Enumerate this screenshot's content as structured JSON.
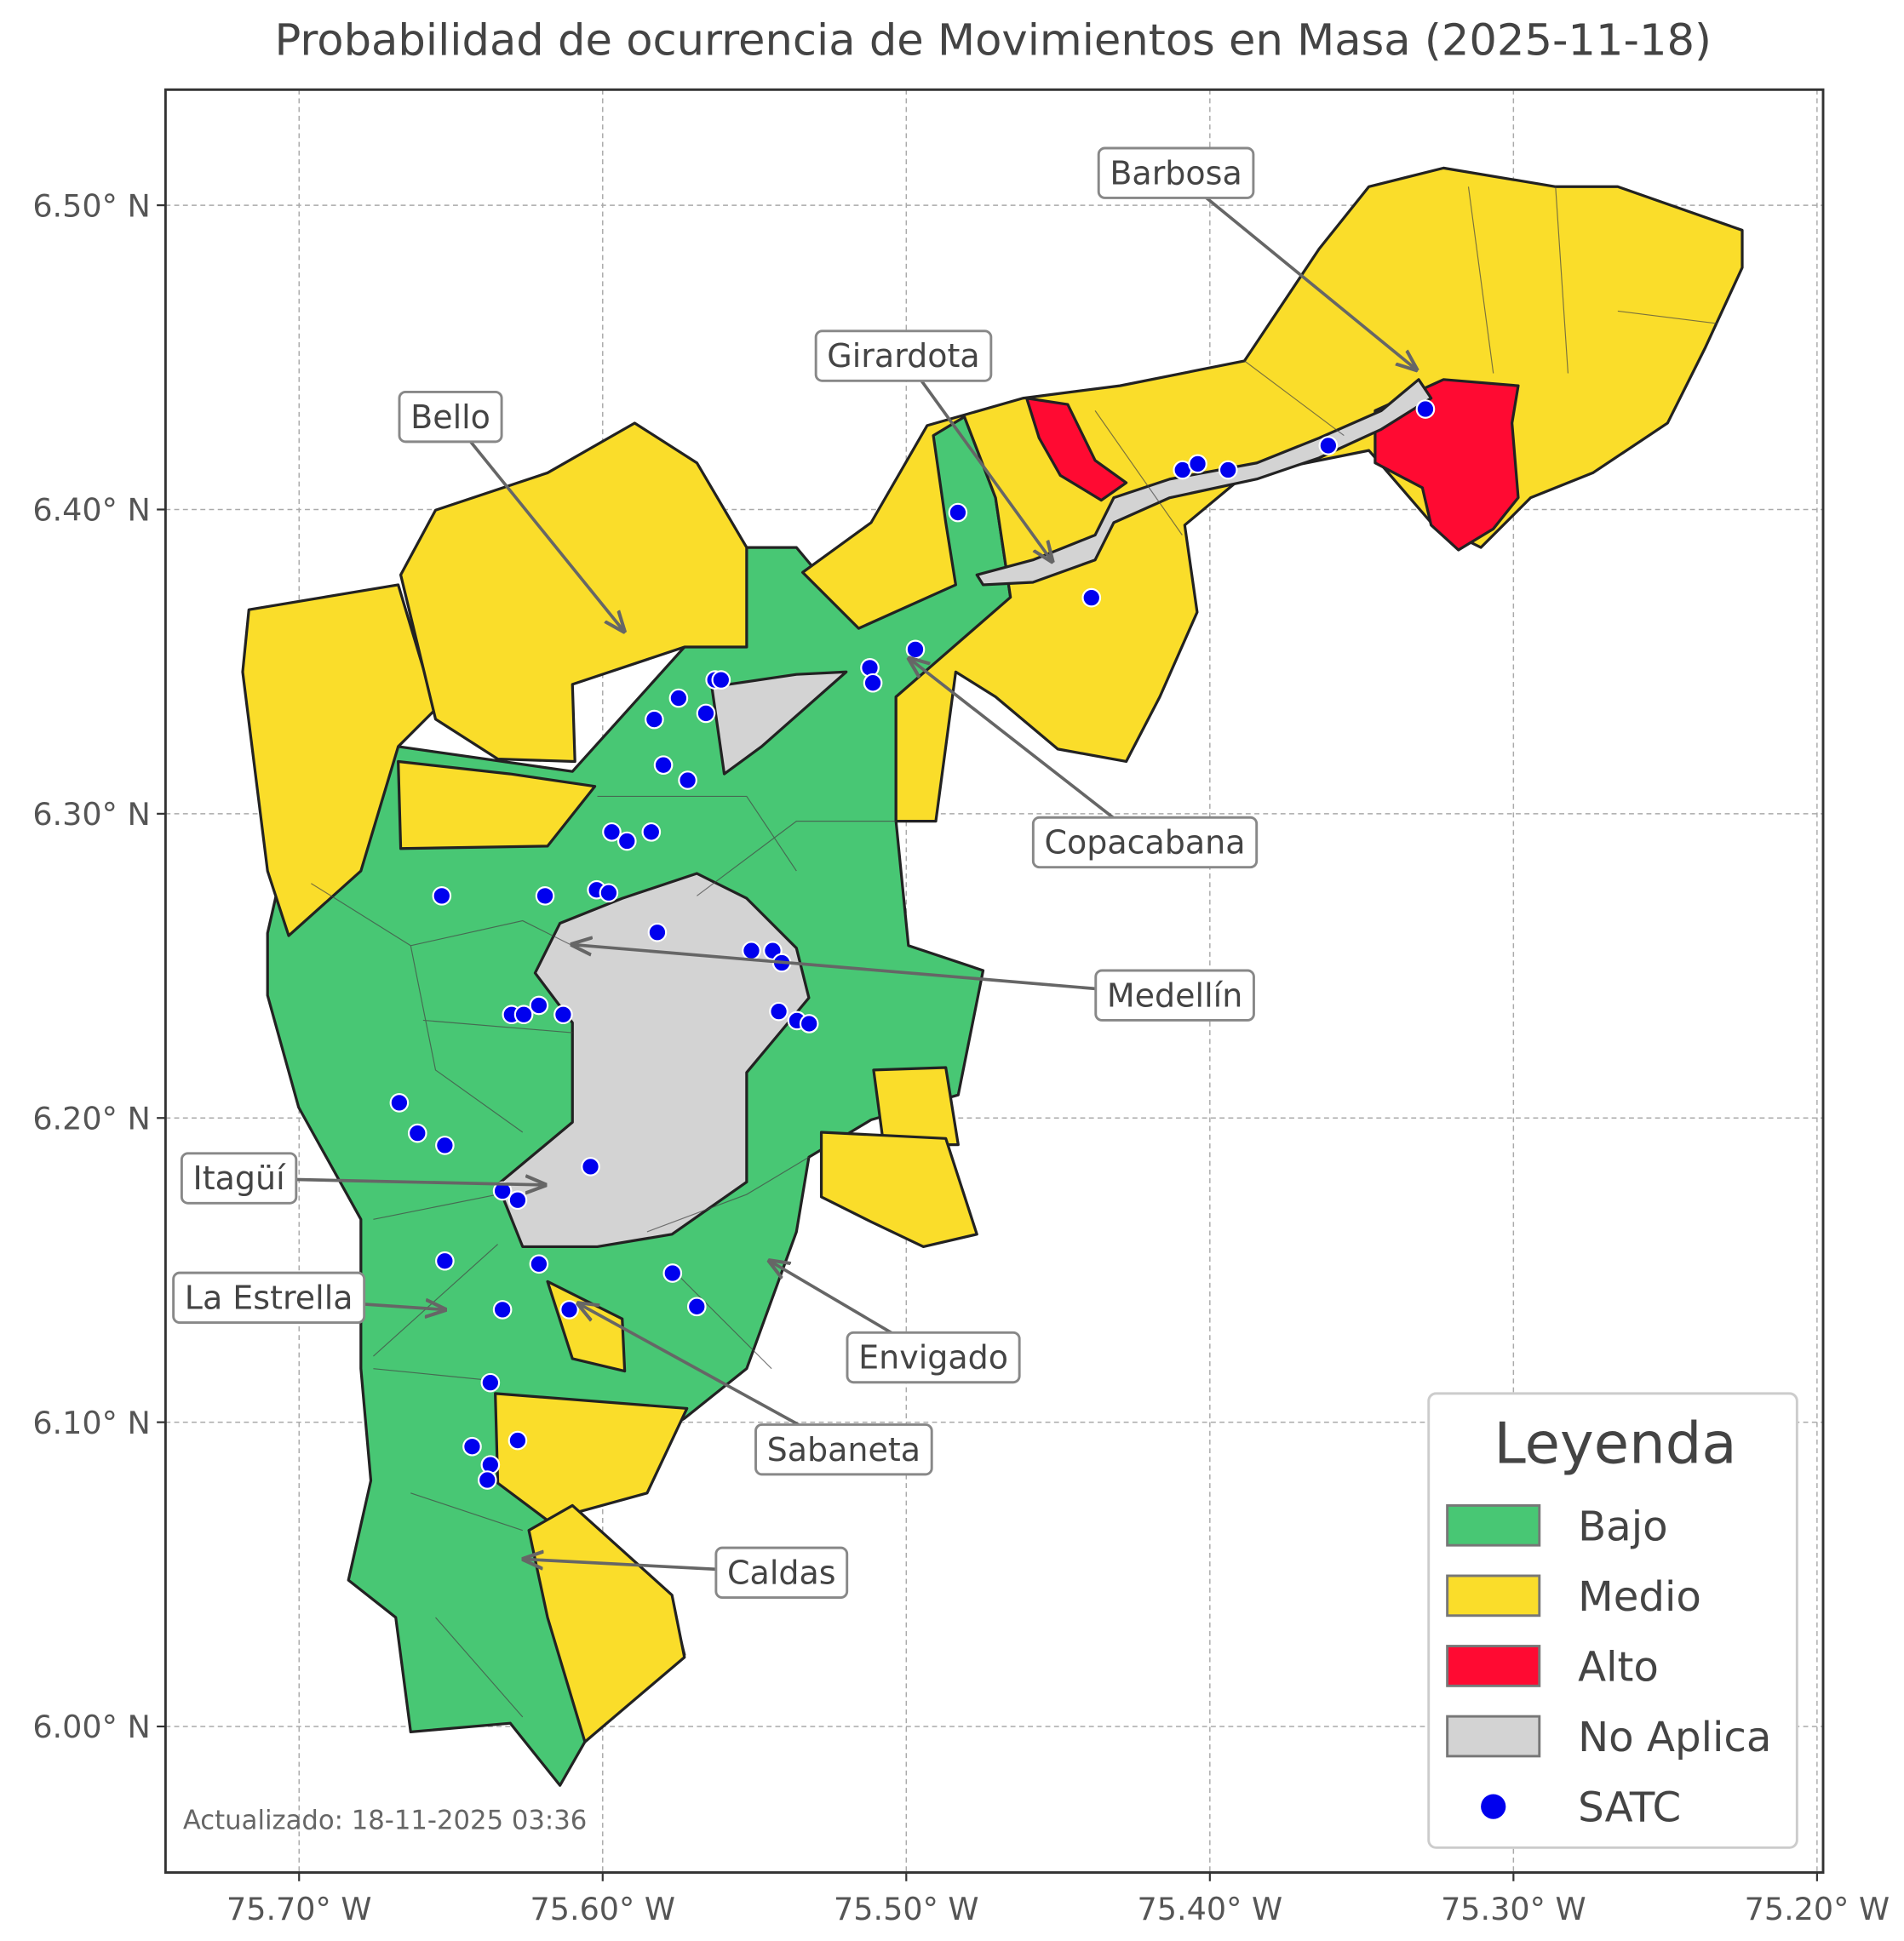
{
  "map": {
    "title": "Probabilidad de ocurrencia de Movimientos en Masa (2025-11-18)",
    "xlim": [
      -75.744,
      -75.198
    ],
    "ylim": [
      5.952,
      6.538
    ],
    "xticks": [
      {
        "value": -75.7,
        "label": "75.70° W"
      },
      {
        "value": -75.6,
        "label": "75.60° W"
      },
      {
        "value": -75.5,
        "label": "75.50° W"
      },
      {
        "value": -75.4,
        "label": "75.40° W"
      },
      {
        "value": -75.3,
        "label": "75.30° W"
      },
      {
        "value": -75.2,
        "label": "75.20° W"
      }
    ],
    "yticks": [
      {
        "value": 6.0,
        "label": "6.00° N"
      },
      {
        "value": 6.1,
        "label": "6.10° N"
      },
      {
        "value": 6.2,
        "label": "6.20° N"
      },
      {
        "value": 6.3,
        "label": "6.30° N"
      },
      {
        "value": 6.4,
        "label": "6.40° N"
      },
      {
        "value": 6.5,
        "label": "6.50° N"
      }
    ],
    "grid": true,
    "annotations": [
      {
        "text": "Barbosa",
        "xy": [
          -75.332,
          6.446
        ]
      },
      {
        "text": "Girardota",
        "xy": [
          -75.452,
          6.383
        ]
      },
      {
        "text": "Bello",
        "xy": [
          -75.593,
          6.36
        ]
      },
      {
        "text": "Copacabana",
        "xy": [
          -75.499,
          6.351
        ]
      },
      {
        "text": "Medellín",
        "xy": [
          -75.61,
          6.257
        ]
      },
      {
        "text": "Itagüí",
        "xy": [
          -75.619,
          6.178
        ]
      },
      {
        "text": "La Estrella",
        "xy": [
          -75.652,
          6.137
        ]
      },
      {
        "text": "Envigado",
        "xy": [
          -75.545,
          6.153
        ]
      },
      {
        "text": "Sabaneta",
        "xy": [
          -75.608,
          6.139
        ]
      },
      {
        "text": "Caldas",
        "xy": [
          -75.626,
          6.055
        ]
      }
    ],
    "stations": {
      "color": "#0000ee",
      "points": [
        [
          -75.329,
          6.433
        ],
        [
          -75.361,
          6.421
        ],
        [
          -75.409,
          6.413
        ],
        [
          -75.404,
          6.415
        ],
        [
          -75.394,
          6.413
        ],
        [
          -75.483,
          6.399
        ],
        [
          -75.439,
          6.371
        ],
        [
          -75.497,
          6.354
        ],
        [
          -75.512,
          6.348
        ],
        [
          -75.511,
          6.343
        ],
        [
          -75.563,
          6.344
        ],
        [
          -75.561,
          6.344
        ],
        [
          -75.575,
          6.338
        ],
        [
          -75.583,
          6.331
        ],
        [
          -75.566,
          6.333
        ],
        [
          -75.58,
          6.316
        ],
        [
          -75.572,
          6.311
        ],
        [
          -75.597,
          6.294
        ],
        [
          -75.592,
          6.291
        ],
        [
          -75.584,
          6.294
        ],
        [
          -75.653,
          6.273
        ],
        [
          -75.619,
          6.273
        ],
        [
          -75.602,
          6.275
        ],
        [
          -75.598,
          6.274
        ],
        [
          -75.582,
          6.261
        ],
        [
          -75.551,
          6.255
        ],
        [
          -75.544,
          6.255
        ],
        [
          -75.541,
          6.251
        ],
        [
          -75.542,
          6.235
        ],
        [
          -75.536,
          6.232
        ],
        [
          -75.532,
          6.231
        ],
        [
          -75.63,
          6.234
        ],
        [
          -75.626,
          6.234
        ],
        [
          -75.621,
          6.237
        ],
        [
          -75.613,
          6.234
        ],
        [
          -75.667,
          6.205
        ],
        [
          -75.661,
          6.195
        ],
        [
          -75.652,
          6.191
        ],
        [
          -75.604,
          6.184
        ],
        [
          -75.633,
          6.176
        ],
        [
          -75.628,
          6.173
        ],
        [
          -75.652,
          6.153
        ],
        [
          -75.621,
          6.152
        ],
        [
          -75.577,
          6.149
        ],
        [
          -75.569,
          6.138
        ],
        [
          -75.633,
          6.137
        ],
        [
          -75.611,
          6.137
        ],
        [
          -75.637,
          6.113
        ],
        [
          -75.643,
          6.092
        ],
        [
          -75.628,
          6.094
        ],
        [
          -75.637,
          6.086
        ],
        [
          -75.638,
          6.081
        ]
      ]
    }
  },
  "legend": {
    "title": "Leyenda",
    "items": [
      {
        "label": "Bajo",
        "color": "#48c774"
      },
      {
        "label": "Medio",
        "color": "#fadd2a"
      },
      {
        "label": "Alto",
        "color": "#ff0a32"
      },
      {
        "label": "No Aplica",
        "color": "#d3d3d3"
      },
      {
        "label": "SATC"
      }
    ]
  },
  "footer": {
    "updated": "Actualizado: 18-11-2025 03:36"
  }
}
